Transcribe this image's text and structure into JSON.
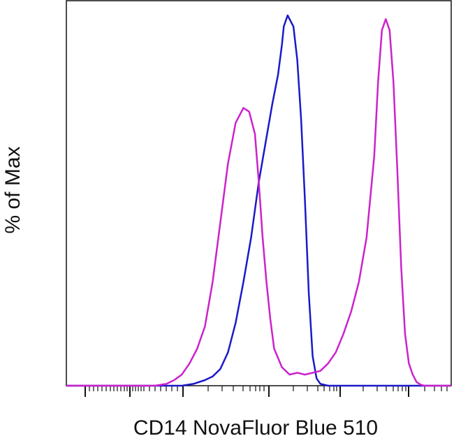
{
  "chart_data": {
    "type": "line",
    "title": "",
    "xlabel": "CD14 NovaFluor Blue 510",
    "ylabel": "% of Max",
    "xlim": [
      0,
      1
    ],
    "ylim": [
      0,
      100
    ],
    "grid": false,
    "legend": "none",
    "x_tick_labels": [],
    "y_tick_labels": [],
    "series": [
      {
        "color": "#1a1ac8",
        "x": [
          0.0,
          0.25,
          0.3,
          0.33,
          0.36,
          0.38,
          0.4,
          0.42,
          0.44,
          0.46,
          0.48,
          0.5,
          0.52,
          0.535,
          0.55,
          0.56,
          0.565,
          0.575,
          0.59,
          0.6,
          0.61,
          0.62,
          0.63,
          0.64,
          0.65,
          0.66,
          0.68,
          0.7,
          1.0
        ],
        "y": [
          0,
          0,
          0,
          0.5,
          1.5,
          2.5,
          4.5,
          9,
          17,
          28,
          40,
          55,
          67,
          76,
          84,
          92,
          97,
          100,
          97,
          88,
          72,
          50,
          25,
          8,
          2,
          0.5,
          0,
          0,
          0
        ]
      },
      {
        "color": "#cc22cc",
        "x": [
          0.0,
          0.23,
          0.26,
          0.28,
          0.3,
          0.32,
          0.34,
          0.36,
          0.38,
          0.4,
          0.42,
          0.44,
          0.46,
          0.475,
          0.49,
          0.5,
          0.51,
          0.52,
          0.53,
          0.54,
          0.56,
          0.58,
          0.6,
          0.62,
          0.64,
          0.66,
          0.68,
          0.7,
          0.72,
          0.74,
          0.76,
          0.78,
          0.8,
          0.81,
          0.82,
          0.83,
          0.84,
          0.85,
          0.86,
          0.87,
          0.88,
          0.89,
          0.9,
          0.91,
          0.92,
          0.93,
          0.94,
          0.95,
          0.97,
          1.0
        ],
        "y": [
          0,
          0,
          0.5,
          1.5,
          3,
          6,
          10,
          16,
          28,
          44,
          60,
          71,
          75,
          74,
          68,
          55,
          40,
          28,
          18,
          10,
          5,
          3,
          3.5,
          3,
          3.5,
          4,
          6,
          9,
          14,
          20,
          28,
          40,
          62,
          82,
          96,
          99,
          96,
          82,
          58,
          32,
          14,
          6,
          3,
          1,
          0.3,
          0,
          0,
          0,
          0,
          0
        ]
      }
    ]
  }
}
